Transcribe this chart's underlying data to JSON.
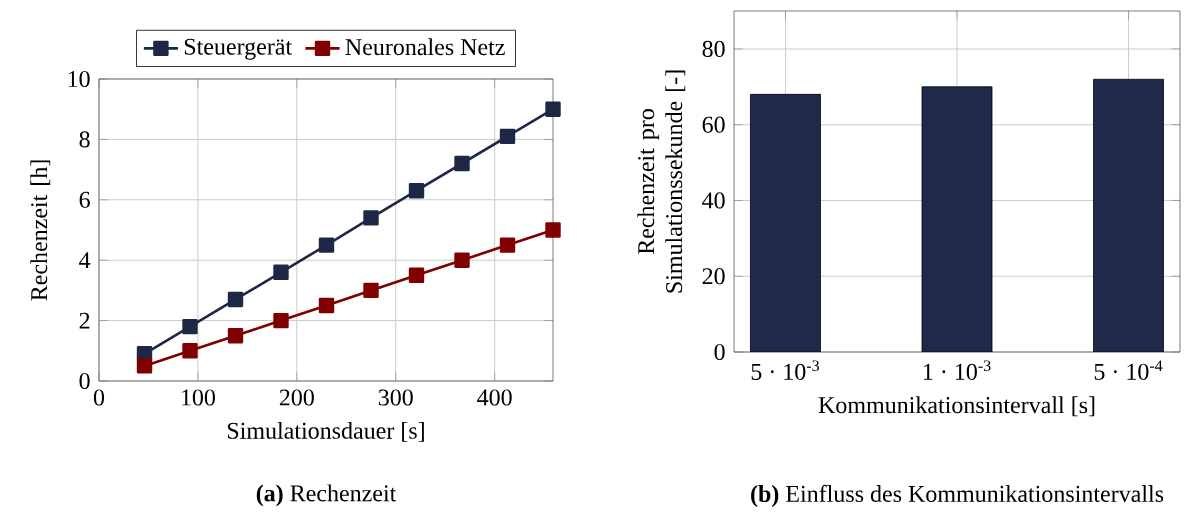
{
  "chart_data": [
    {
      "type": "line",
      "xlabel": "Simulationsdauer [s]",
      "ylabel": "Rechenzeit [h]",
      "annotations": [
        "**(a)** Rechenzeit"
      ],
      "x": [
        46,
        92,
        138,
        184,
        230,
        275,
        321,
        367,
        413,
        459
      ],
      "series": [
        {
          "name": "Steuergerät",
          "color": "#1f2747",
          "values": [
            0.9,
            1.8,
            2.7,
            3.6,
            4.5,
            5.4,
            6.3,
            7.2,
            8.1,
            9.0
          ]
        },
        {
          "name": "Neuronales Netz",
          "color": "#800000",
          "values": [
            0.5,
            1.0,
            1.5,
            2.0,
            2.5,
            3.0,
            3.5,
            4.0,
            4.5,
            5.0
          ]
        }
      ],
      "xlim": [
        0,
        459
      ],
      "ylim": [
        0,
        10
      ],
      "xticks": [
        0,
        100,
        200,
        300,
        400
      ],
      "yticks": [
        0,
        2,
        4,
        6,
        8,
        10
      ],
      "grid": true,
      "legend": "top",
      "marker": "square",
      "line_style": "solid"
    },
    {
      "type": "bar",
      "xlabel": "Kommunikationsintervall [s]",
      "ylabel": "Rechenzeit pro Simulationssekunde [-]",
      "annotations": [
        "**(b)** Einfluss des Kommunikationsintervalls"
      ],
      "categories": [
        "5 · 10$^{-3}$",
        "1 · 10$^{-3}$",
        "5 · 10$^{-4}$"
      ],
      "values": [
        68,
        70,
        72
      ],
      "color": "#20294a",
      "ylim": [
        0,
        90
      ],
      "yticks": [
        0,
        20,
        40,
        60,
        80
      ],
      "grid": true
    }
  ]
}
